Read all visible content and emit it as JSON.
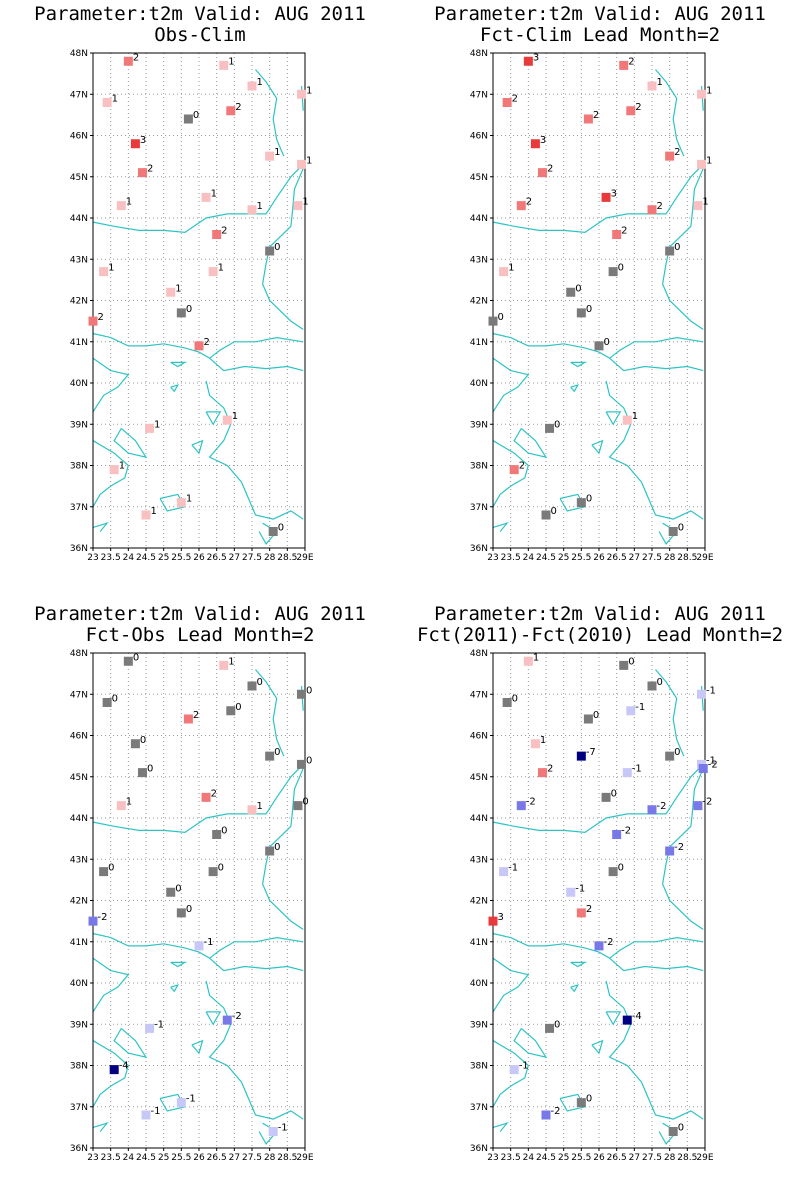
{
  "axes": {
    "y_ticks": [
      "36N",
      "37N",
      "38N",
      "39N",
      "40N",
      "41N",
      "42N",
      "43N",
      "44N",
      "45N",
      "46N",
      "47N",
      "48N"
    ],
    "x_ticks": [
      "23",
      "23.5",
      "24",
      "24.5",
      "25",
      "25.5",
      "26",
      "26.5",
      "27",
      "27.5",
      "28",
      "28.5",
      "29E"
    ],
    "xlim": [
      23,
      29
    ],
    "ylim": [
      36,
      48
    ]
  },
  "colors": {
    "coast": "#2ec4c4",
    "grid": "#9a9a9a",
    "zero": "#7a7a7a",
    "pos1": "#f8c0c0",
    "pos2": "#f07878",
    "pos3": "#e83a3a",
    "neg1": "#c8c8f8",
    "neg2": "#7878e8",
    "neg_strong": "#000080"
  },
  "chart_data": [
    {
      "type": "scatter",
      "title": "Parameter:t2m Valid: AUG 2011",
      "subtitle": "Obs-Clim",
      "points": [
        {
          "lon": 24.0,
          "lat": 47.8,
          "value": "2"
        },
        {
          "lon": 26.7,
          "lat": 47.7,
          "value": "1"
        },
        {
          "lon": 27.5,
          "lat": 47.2,
          "value": "1"
        },
        {
          "lon": 28.9,
          "lat": 47.0,
          "value": "1"
        },
        {
          "lon": 23.4,
          "lat": 46.8,
          "value": "1"
        },
        {
          "lon": 25.7,
          "lat": 46.4,
          "value": "0"
        },
        {
          "lon": 26.9,
          "lat": 46.6,
          "value": "2"
        },
        {
          "lon": 24.2,
          "lat": 45.8,
          "value": "3"
        },
        {
          "lon": 28.0,
          "lat": 45.5,
          "value": "1"
        },
        {
          "lon": 24.4,
          "lat": 45.1,
          "value": "2"
        },
        {
          "lon": 28.9,
          "lat": 45.3,
          "value": "1"
        },
        {
          "lon": 23.8,
          "lat": 44.3,
          "value": "1"
        },
        {
          "lon": 26.2,
          "lat": 44.5,
          "value": "1"
        },
        {
          "lon": 27.5,
          "lat": 44.2,
          "value": "1"
        },
        {
          "lon": 28.8,
          "lat": 44.3,
          "value": "1"
        },
        {
          "lon": 26.5,
          "lat": 43.6,
          "value": "2"
        },
        {
          "lon": 28.0,
          "lat": 43.2,
          "value": "0"
        },
        {
          "lon": 23.3,
          "lat": 42.7,
          "value": "1"
        },
        {
          "lon": 26.4,
          "lat": 42.7,
          "value": "1"
        },
        {
          "lon": 25.2,
          "lat": 42.2,
          "value": "1"
        },
        {
          "lon": 25.5,
          "lat": 41.7,
          "value": "0"
        },
        {
          "lon": 23.0,
          "lat": 41.5,
          "value": "2"
        },
        {
          "lon": 26.0,
          "lat": 40.9,
          "value": "2"
        },
        {
          "lon": 26.8,
          "lat": 39.1,
          "value": "1"
        },
        {
          "lon": 24.6,
          "lat": 38.9,
          "value": "1"
        },
        {
          "lon": 23.6,
          "lat": 37.9,
          "value": "1"
        },
        {
          "lon": 25.5,
          "lat": 37.1,
          "value": "1"
        },
        {
          "lon": 24.5,
          "lat": 36.8,
          "value": "1"
        },
        {
          "lon": 28.1,
          "lat": 36.4,
          "value": "0"
        }
      ]
    },
    {
      "type": "scatter",
      "title": "Parameter:t2m Valid: AUG 2011",
      "subtitle": "Fct-Clim Lead Month=2",
      "points": [
        {
          "lon": 24.0,
          "lat": 47.8,
          "value": "3"
        },
        {
          "lon": 26.7,
          "lat": 47.7,
          "value": "2"
        },
        {
          "lon": 27.5,
          "lat": 47.2,
          "value": "1"
        },
        {
          "lon": 28.9,
          "lat": 47.0,
          "value": "1"
        },
        {
          "lon": 23.4,
          "lat": 46.8,
          "value": "2"
        },
        {
          "lon": 25.7,
          "lat": 46.4,
          "value": "2"
        },
        {
          "lon": 26.9,
          "lat": 46.6,
          "value": "2"
        },
        {
          "lon": 24.2,
          "lat": 45.8,
          "value": "3"
        },
        {
          "lon": 28.0,
          "lat": 45.5,
          "value": "2"
        },
        {
          "lon": 24.4,
          "lat": 45.1,
          "value": "2"
        },
        {
          "lon": 28.9,
          "lat": 45.3,
          "value": "1"
        },
        {
          "lon": 23.8,
          "lat": 44.3,
          "value": "2"
        },
        {
          "lon": 26.2,
          "lat": 44.5,
          "value": "3"
        },
        {
          "lon": 27.5,
          "lat": 44.2,
          "value": "2"
        },
        {
          "lon": 28.8,
          "lat": 44.3,
          "value": "1"
        },
        {
          "lon": 26.5,
          "lat": 43.6,
          "value": "2"
        },
        {
          "lon": 28.0,
          "lat": 43.2,
          "value": "0"
        },
        {
          "lon": 23.3,
          "lat": 42.7,
          "value": "1"
        },
        {
          "lon": 26.4,
          "lat": 42.7,
          "value": "0"
        },
        {
          "lon": 25.2,
          "lat": 42.2,
          "value": "0"
        },
        {
          "lon": 25.5,
          "lat": 41.7,
          "value": "0"
        },
        {
          "lon": 23.0,
          "lat": 41.5,
          "value": "0"
        },
        {
          "lon": 26.0,
          "lat": 40.9,
          "value": "0"
        },
        {
          "lon": 26.8,
          "lat": 39.1,
          "value": "1"
        },
        {
          "lon": 24.6,
          "lat": 38.9,
          "value": "0"
        },
        {
          "lon": 23.6,
          "lat": 37.9,
          "value": "2"
        },
        {
          "lon": 25.5,
          "lat": 37.1,
          "value": "0"
        },
        {
          "lon": 24.5,
          "lat": 36.8,
          "value": "0"
        },
        {
          "lon": 28.1,
          "lat": 36.4,
          "value": "0"
        }
      ]
    },
    {
      "type": "scatter",
      "title": "Parameter:t2m Valid: AUG 2011",
      "subtitle": "Fct-Obs Lead Month=2",
      "points": [
        {
          "lon": 24.0,
          "lat": 47.8,
          "value": "0"
        },
        {
          "lon": 26.7,
          "lat": 47.7,
          "value": "1"
        },
        {
          "lon": 27.5,
          "lat": 47.2,
          "value": "0"
        },
        {
          "lon": 28.9,
          "lat": 47.0,
          "value": "0"
        },
        {
          "lon": 23.4,
          "lat": 46.8,
          "value": "0"
        },
        {
          "lon": 25.7,
          "lat": 46.4,
          "value": "2"
        },
        {
          "lon": 26.9,
          "lat": 46.6,
          "value": "0"
        },
        {
          "lon": 24.2,
          "lat": 45.8,
          "value": "0"
        },
        {
          "lon": 28.0,
          "lat": 45.5,
          "value": "0"
        },
        {
          "lon": 24.4,
          "lat": 45.1,
          "value": "0"
        },
        {
          "lon": 28.9,
          "lat": 45.3,
          "value": "0"
        },
        {
          "lon": 23.8,
          "lat": 44.3,
          "value": "1"
        },
        {
          "lon": 26.2,
          "lat": 44.5,
          "value": "2"
        },
        {
          "lon": 27.5,
          "lat": 44.2,
          "value": "1"
        },
        {
          "lon": 28.8,
          "lat": 44.3,
          "value": "0"
        },
        {
          "lon": 26.5,
          "lat": 43.6,
          "value": "0"
        },
        {
          "lon": 28.0,
          "lat": 43.2,
          "value": "0"
        },
        {
          "lon": 23.3,
          "lat": 42.7,
          "value": "0"
        },
        {
          "lon": 26.4,
          "lat": 42.7,
          "value": "0"
        },
        {
          "lon": 25.2,
          "lat": 42.2,
          "value": "0"
        },
        {
          "lon": 25.5,
          "lat": 41.7,
          "value": "0"
        },
        {
          "lon": 23.0,
          "lat": 41.5,
          "value": "-2"
        },
        {
          "lon": 26.0,
          "lat": 40.9,
          "value": "-1"
        },
        {
          "lon": 26.8,
          "lat": 39.1,
          "value": "-2"
        },
        {
          "lon": 24.6,
          "lat": 38.9,
          "value": "-1"
        },
        {
          "lon": 23.6,
          "lat": 37.9,
          "value": "-4"
        },
        {
          "lon": 25.5,
          "lat": 37.1,
          "value": "-1"
        },
        {
          "lon": 24.5,
          "lat": 36.8,
          "value": "-1"
        },
        {
          "lon": 28.1,
          "lat": 36.4,
          "value": "-1"
        }
      ]
    },
    {
      "type": "scatter",
      "title": "Parameter:t2m Valid: AUG 2011",
      "subtitle": "Fct(2011)-Fct(2010) Lead Month=2",
      "points": [
        {
          "lon": 24.0,
          "lat": 47.8,
          "value": "1"
        },
        {
          "lon": 26.7,
          "lat": 47.7,
          "value": "0"
        },
        {
          "lon": 27.5,
          "lat": 47.2,
          "value": "0"
        },
        {
          "lon": 28.9,
          "lat": 47.0,
          "value": "-1"
        },
        {
          "lon": 23.4,
          "lat": 46.8,
          "value": "0"
        },
        {
          "lon": 25.7,
          "lat": 46.4,
          "value": "0"
        },
        {
          "lon": 26.9,
          "lat": 46.6,
          "value": "-1"
        },
        {
          "lon": 24.2,
          "lat": 45.8,
          "value": "1"
        },
        {
          "lon": 28.0,
          "lat": 45.5,
          "value": "0"
        },
        {
          "lon": 24.4,
          "lat": 45.1,
          "value": "2"
        },
        {
          "lon": 28.9,
          "lat": 45.3,
          "value": "-1"
        },
        {
          "lon": 25.5,
          "lat": 45.5,
          "value": "-7"
        },
        {
          "lon": 26.8,
          "lat": 45.1,
          "value": "-1"
        },
        {
          "lon": 28.95,
          "lat": 45.2,
          "value": "-2"
        },
        {
          "lon": 23.8,
          "lat": 44.3,
          "value": "-2"
        },
        {
          "lon": 26.2,
          "lat": 44.5,
          "value": "0"
        },
        {
          "lon": 27.5,
          "lat": 44.2,
          "value": "-2"
        },
        {
          "lon": 28.8,
          "lat": 44.3,
          "value": "-2"
        },
        {
          "lon": 26.5,
          "lat": 43.6,
          "value": "-2"
        },
        {
          "lon": 28.0,
          "lat": 43.2,
          "value": "-2"
        },
        {
          "lon": 23.3,
          "lat": 42.7,
          "value": "-1"
        },
        {
          "lon": 26.4,
          "lat": 42.7,
          "value": "0"
        },
        {
          "lon": 25.2,
          "lat": 42.2,
          "value": "-1"
        },
        {
          "lon": 25.5,
          "lat": 41.7,
          "value": "2"
        },
        {
          "lon": 23.0,
          "lat": 41.5,
          "value": "3"
        },
        {
          "lon": 26.0,
          "lat": 40.9,
          "value": "-2"
        },
        {
          "lon": 26.8,
          "lat": 39.1,
          "value": "-4"
        },
        {
          "lon": 24.6,
          "lat": 38.9,
          "value": "0"
        },
        {
          "lon": 23.6,
          "lat": 37.9,
          "value": "-1"
        },
        {
          "lon": 25.5,
          "lat": 37.1,
          "value": "0"
        },
        {
          "lon": 24.5,
          "lat": 36.8,
          "value": "-2"
        },
        {
          "lon": 28.1,
          "lat": 36.4,
          "value": "0"
        }
      ]
    }
  ]
}
